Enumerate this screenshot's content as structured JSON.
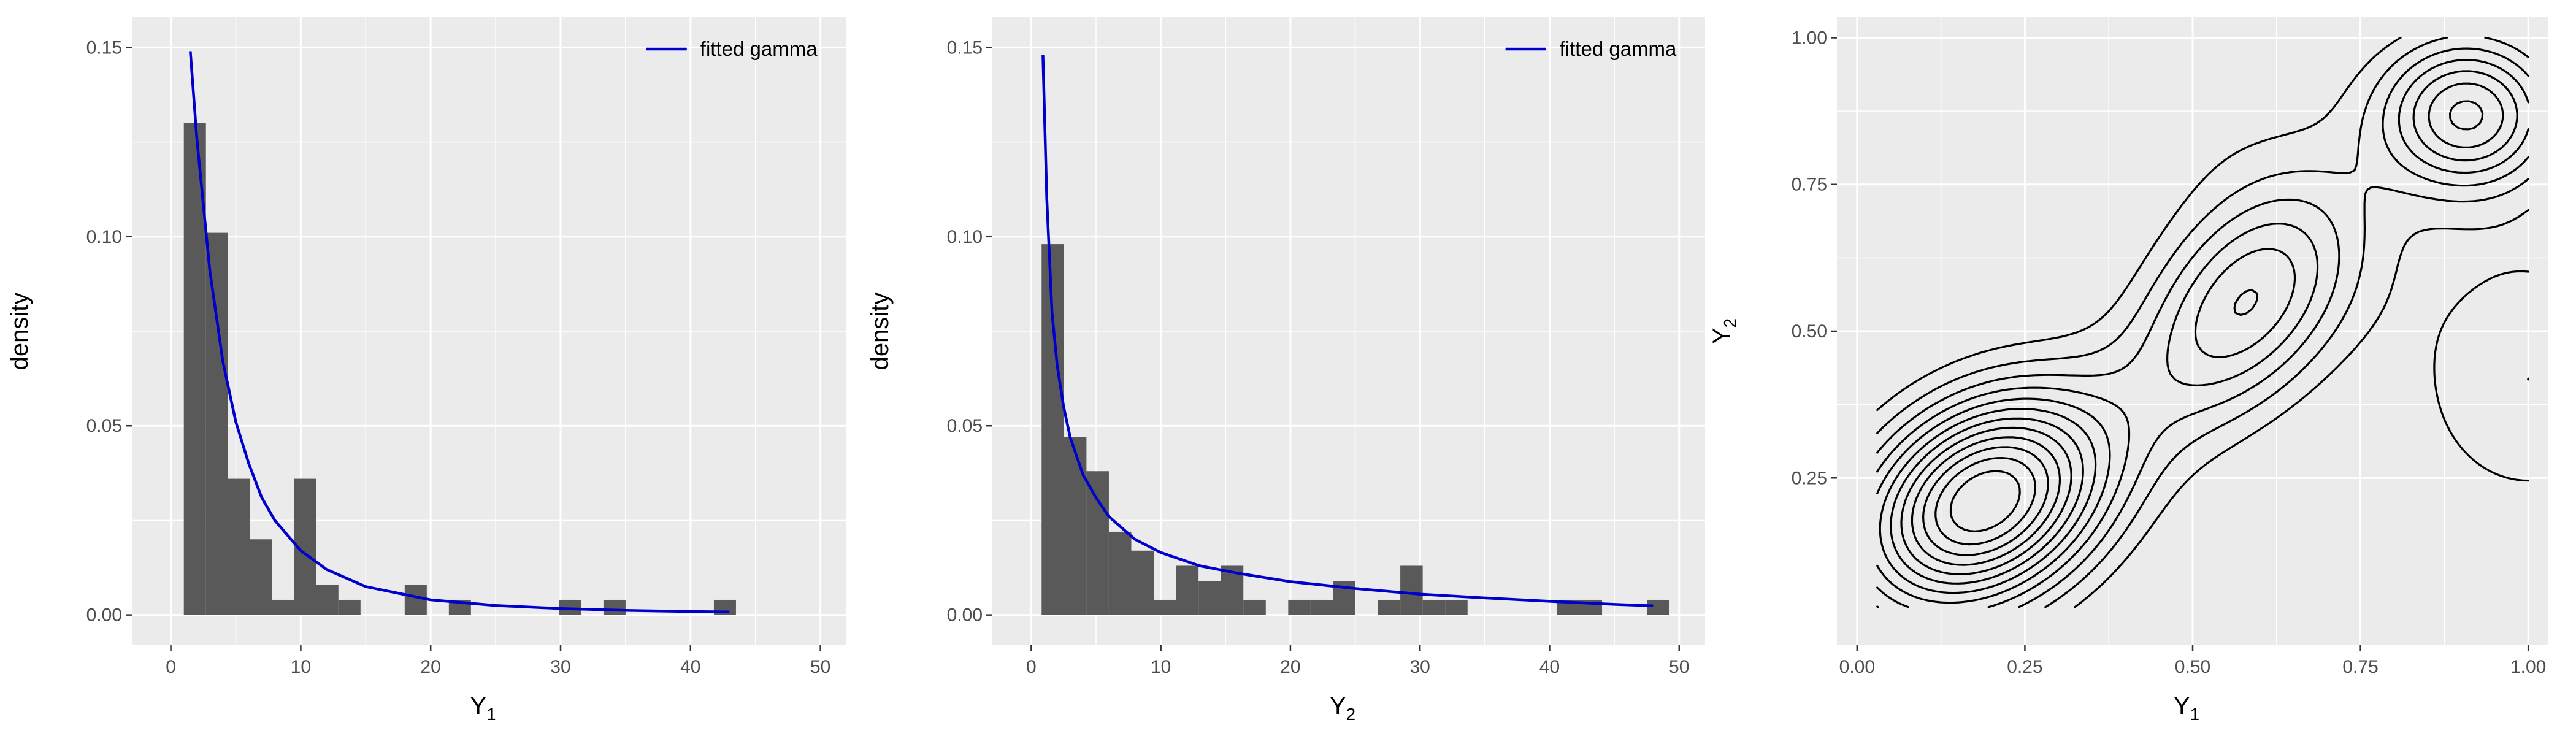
{
  "chart_data": [
    {
      "type": "bar",
      "panel": "left",
      "xlabel_base": "Y",
      "xlabel_sub": "1",
      "ylabel": "density",
      "xlim": [
        -3,
        52
      ],
      "ylim": [
        -0.008,
        0.158
      ],
      "xticks": [
        0,
        10,
        20,
        30,
        40,
        50
      ],
      "xtick_labels": [
        "0",
        "10",
        "20",
        "30",
        "40",
        "50"
      ],
      "yticks": [
        0,
        0.05,
        0.1,
        0.15
      ],
      "ytick_labels": [
        "0.00",
        "0.05",
        "0.10",
        "0.15"
      ],
      "grid": true,
      "legend": {
        "position": "top-right",
        "entries": [
          "fitted gamma"
        ],
        "color": "#0000CC"
      },
      "bar_color": "#595959",
      "histogram": {
        "bin_start": 1,
        "bin_width": 1.7,
        "densities": [
          0.13,
          0.101,
          0.036,
          0.02,
          0.004,
          0.036,
          0.008,
          0.004,
          0,
          0,
          0.008,
          0,
          0.004,
          0,
          0,
          0,
          0,
          0.004,
          0,
          0.004,
          0,
          0,
          0,
          0,
          0.004
        ]
      },
      "fitted_curve": {
        "name": "fitted gamma",
        "color": "#0000CC",
        "x": [
          1.5,
          2,
          3,
          4,
          5,
          6,
          7,
          8,
          10,
          12,
          15,
          20,
          25,
          30,
          35,
          40,
          43
        ],
        "y": [
          0.149,
          0.126,
          0.091,
          0.067,
          0.051,
          0.04,
          0.031,
          0.025,
          0.017,
          0.012,
          0.0075,
          0.004,
          0.0025,
          0.0017,
          0.0012,
          0.0009,
          0.0008
        ]
      }
    },
    {
      "type": "bar",
      "panel": "middle",
      "xlabel_base": "Y",
      "xlabel_sub": "2",
      "ylabel": "density",
      "xlim": [
        -3,
        52
      ],
      "ylim": [
        -0.008,
        0.158
      ],
      "xticks": [
        0,
        10,
        20,
        30,
        40,
        50
      ],
      "xtick_labels": [
        "0",
        "10",
        "20",
        "30",
        "40",
        "50"
      ],
      "yticks": [
        0,
        0.05,
        0.1,
        0.15
      ],
      "ytick_labels": [
        "0.00",
        "0.05",
        "0.10",
        "0.15"
      ],
      "grid": true,
      "legend": {
        "position": "top-right",
        "entries": [
          "fitted gamma"
        ],
        "color": "#0000CC"
      },
      "bar_color": "#595959",
      "histogram": {
        "bin_start": 0.8,
        "bin_width": 1.73,
        "densities": [
          0.098,
          0.047,
          0.038,
          0.022,
          0.017,
          0.004,
          0.013,
          0.009,
          0.013,
          0.004,
          0,
          0.004,
          0.004,
          0.009,
          0,
          0.004,
          0.013,
          0.004,
          0.004,
          0,
          0,
          0,
          0,
          0.004,
          0.004,
          0,
          0,
          0.004
        ]
      },
      "fitted_curve": {
        "name": "fitted gamma",
        "color": "#0000CC",
        "x": [
          0.9,
          1.2,
          1.6,
          2,
          2.5,
          3,
          4,
          5,
          6,
          8,
          10,
          13,
          16,
          20,
          25,
          30,
          35,
          40,
          45,
          48
        ],
        "y": [
          0.148,
          0.11,
          0.08,
          0.066,
          0.055,
          0.047,
          0.037,
          0.031,
          0.026,
          0.02,
          0.0165,
          0.013,
          0.011,
          0.0088,
          0.007,
          0.0055,
          0.0045,
          0.0036,
          0.0028,
          0.0024
        ]
      }
    },
    {
      "type": "contour",
      "panel": "right",
      "xlabel_base": "Y",
      "xlabel_sub": "1",
      "ylabel_base": "Y",
      "ylabel_sub": "2",
      "xlim": [
        -0.03,
        1.03
      ],
      "ylim": [
        -0.035,
        1.035
      ],
      "xticks": [
        0,
        0.25,
        0.5,
        0.75,
        1
      ],
      "xtick_labels": [
        "0.00",
        "0.25",
        "0.50",
        "0.75",
        "1.00"
      ],
      "yticks": [
        0.25,
        0.5,
        0.75,
        1
      ],
      "ytick_labels": [
        "0.25",
        "0.50",
        "0.75",
        "1.00"
      ],
      "grid": true,
      "line_color": "#000000",
      "levels": [
        0.35,
        0.5,
        0.65,
        0.8,
        0.95,
        1.1,
        1.25,
        1.4,
        1.55,
        1.7,
        1.85,
        2.0
      ],
      "density_model": {
        "baseline": 0.1,
        "clip": [
          0.03,
          1.0
        ],
        "bumps": [
          {
            "mx": 0.19,
            "my": 0.21,
            "sx": 0.13,
            "sy": 0.13,
            "rho": 0.3,
            "w": 2.05
          },
          {
            "mx": 0.58,
            "my": 0.55,
            "sx": 0.12,
            "sy": 0.15,
            "rho": 0.45,
            "w": 1.0
          },
          {
            "mx": 0.91,
            "my": 0.87,
            "sx": 0.09,
            "sy": 0.09,
            "rho": 0,
            "w": 1.15
          },
          {
            "mx": 1.0,
            "my": 0.42,
            "sx": 0.14,
            "sy": 0.18,
            "rho": 0,
            "w": 0.4
          },
          {
            "mx": 0.3,
            "my": 0.9,
            "sx": 0.25,
            "sy": 0.12,
            "rho": 0,
            "w": 0.25
          }
        ]
      }
    }
  ]
}
